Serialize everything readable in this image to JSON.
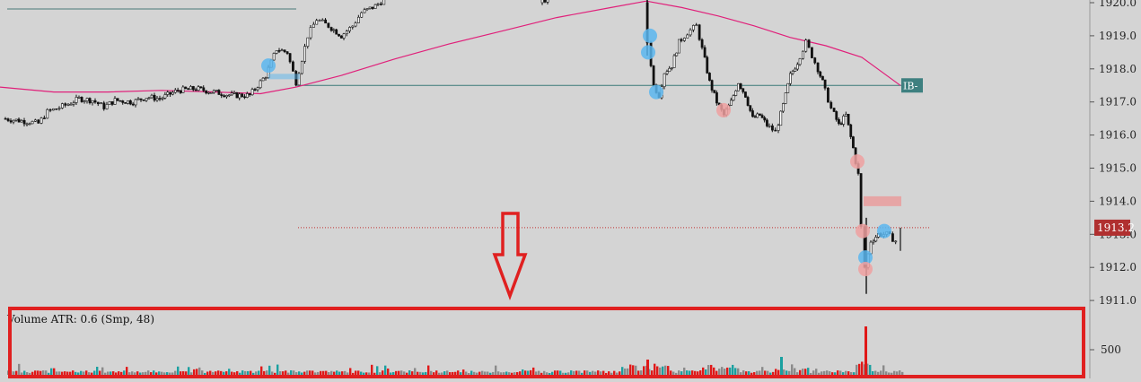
{
  "chart_data": {
    "type": "candlestick",
    "price_axis": {
      "ticks": [
        "1920.0",
        "1919.0",
        "1918.0",
        "1917.0",
        "1916.0",
        "1915.0",
        "1914.0",
        "1913.0",
        "1912.0",
        "1911.0"
      ],
      "range": [
        1910.8,
        1920.1
      ]
    },
    "last_price_label": "1913.2",
    "last_price": 1913.2,
    "level_label": "IB-",
    "level_price": 1917.5,
    "moving_average": {
      "color": "#e0207a",
      "points": [
        [
          0,
          1917.45
        ],
        [
          60,
          1917.3
        ],
        [
          120,
          1917.3
        ],
        [
          180,
          1917.35
        ],
        [
          240,
          1917.3
        ],
        [
          290,
          1917.25
        ],
        [
          330,
          1917.45
        ],
        [
          380,
          1917.8
        ],
        [
          440,
          1918.3
        ],
        [
          500,
          1918.75
        ],
        [
          560,
          1919.15
        ],
        [
          620,
          1919.55
        ],
        [
          680,
          1919.85
        ],
        [
          720,
          1920.05
        ],
        [
          760,
          1919.85
        ],
        [
          800,
          1919.6
        ],
        [
          840,
          1919.3
        ],
        [
          880,
          1918.95
        ],
        [
          920,
          1918.7
        ],
        [
          960,
          1918.35
        ],
        [
          1003,
          1917.5
        ]
      ]
    },
    "candles_close": [
      [
        5,
        1916.5
      ],
      [
        20,
        1916.45
      ],
      [
        35,
        1916.4
      ],
      [
        45,
        1916.35
      ],
      [
        55,
        1916.7
      ],
      [
        65,
        1916.8
      ],
      [
        75,
        1916.9
      ],
      [
        90,
        1917.1
      ],
      [
        105,
        1917.05
      ],
      [
        118,
        1916.85
      ],
      [
        130,
        1917.05
      ],
      [
        150,
        1917.0
      ],
      [
        165,
        1917.15
      ],
      [
        180,
        1917.1
      ],
      [
        200,
        1917.35
      ],
      [
        220,
        1917.4
      ],
      [
        240,
        1917.3
      ],
      [
        260,
        1917.2
      ],
      [
        280,
        1917.2
      ],
      [
        298,
        1917.8
      ],
      [
        310,
        1918.6
      ],
      [
        322,
        1918.5
      ],
      [
        332,
        1917.6
      ],
      [
        345,
        1919.0
      ],
      [
        355,
        1919.5
      ],
      [
        368,
        1919.3
      ],
      [
        382,
        1919.0
      ],
      [
        395,
        1919.3
      ],
      [
        405,
        1919.7
      ],
      [
        420,
        1919.9
      ],
      [
        430,
        1920.1
      ],
      [
        603,
        1920.0
      ],
      [
        612,
        1920.1
      ],
      [
        720,
        1920.0
      ],
      [
        724,
        1918.8
      ],
      [
        730,
        1917.5
      ],
      [
        736,
        1917.2
      ],
      [
        742,
        1917.9
      ],
      [
        750,
        1918.1
      ],
      [
        758,
        1918.8
      ],
      [
        768,
        1919.1
      ],
      [
        778,
        1919.3
      ],
      [
        784,
        1918.6
      ],
      [
        792,
        1917.6
      ],
      [
        800,
        1917.0
      ],
      [
        808,
        1916.6
      ],
      [
        816,
        1917.0
      ],
      [
        824,
        1917.6
      ],
      [
        832,
        1917.2
      ],
      [
        840,
        1916.5
      ],
      [
        848,
        1916.6
      ],
      [
        856,
        1916.3
      ],
      [
        866,
        1916.1
      ],
      [
        874,
        1916.9
      ],
      [
        882,
        1917.8
      ],
      [
        890,
        1918.2
      ],
      [
        900,
        1918.8
      ],
      [
        910,
        1918.2
      ],
      [
        918,
        1917.6
      ],
      [
        928,
        1916.8
      ],
      [
        936,
        1916.3
      ],
      [
        944,
        1916.6
      ],
      [
        952,
        1915.6
      ],
      [
        958,
        1914.8
      ],
      [
        962,
        1913.2
      ],
      [
        966,
        1912.0
      ],
      [
        972,
        1912.8
      ],
      [
        980,
        1913.0
      ],
      [
        990,
        1913.0
      ],
      [
        1000,
        1912.8
      ]
    ],
    "volume_indicator": {
      "label": "Volume  ATR: 0.6   (Smp, 48)",
      "tick": "500",
      "colors": {
        "up": "#1aa0a0",
        "down": "#e01818",
        "neutral": "#8a8a8a"
      }
    },
    "annotation": "red down arrow pointing to volume panel (highlighted with red box)"
  }
}
